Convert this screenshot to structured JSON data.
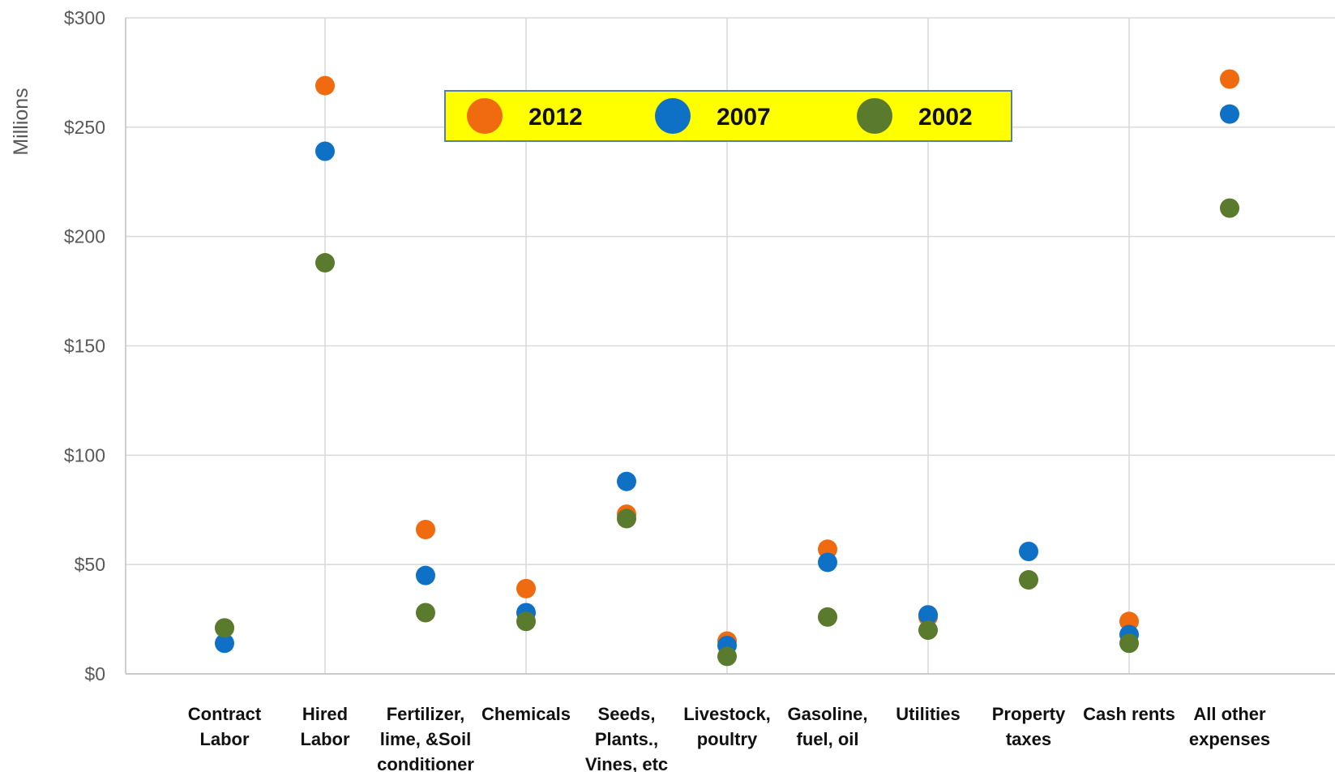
{
  "chart_data": {
    "type": "scatter",
    "title": "",
    "ylabel": "Millions",
    "ylim": [
      0,
      300
    ],
    "y_ticks": [
      {
        "value": 0,
        "label": "$0"
      },
      {
        "value": 50,
        "label": "$50"
      },
      {
        "value": 100,
        "label": "$100"
      },
      {
        "value": 150,
        "label": "$150"
      },
      {
        "value": 200,
        "label": "$200"
      },
      {
        "value": 250,
        "label": "$250"
      },
      {
        "value": 300,
        "label": "$300"
      }
    ],
    "grid": true,
    "legend": {
      "placement": "top-center",
      "background": "#ffff00"
    },
    "categories": [
      [
        "Contract",
        "Labor"
      ],
      [
        "Hired",
        "Labor"
      ],
      [
        "Fertilizer,",
        "lime, &Soil",
        "conditioner"
      ],
      [
        "Chemicals"
      ],
      [
        "Seeds,",
        "Plants.,",
        "Vines,  etc"
      ],
      [
        "Livestock,",
        "poultry"
      ],
      [
        "Gasoline,",
        "fuel, oil"
      ],
      [
        "Utilities"
      ],
      [
        "Property",
        "taxes"
      ],
      [
        "Cash rents"
      ],
      [
        "All other",
        "expenses"
      ]
    ],
    "series": [
      {
        "name": "2012",
        "color": "#f06a0f",
        "values": [
          21,
          269,
          66,
          39,
          73,
          15,
          57,
          26,
          null,
          24,
          272
        ]
      },
      {
        "name": "2007",
        "color": "#0f71c6",
        "values": [
          14,
          239,
          45,
          28,
          88,
          13,
          51,
          27,
          56,
          18,
          256
        ]
      },
      {
        "name": "2002",
        "color": "#5a7a2e",
        "values": [
          21,
          188,
          28,
          24,
          71,
          8,
          26,
          20,
          43,
          14,
          213
        ]
      }
    ]
  }
}
